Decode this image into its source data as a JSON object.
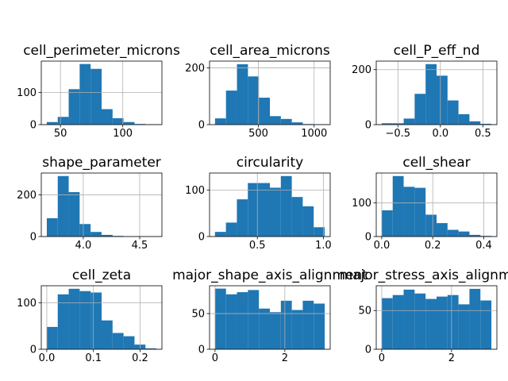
{
  "chart_data": [
    {
      "type": "histogram",
      "title": "cell_perimeter_microns",
      "bins": [
        39,
        47.8,
        56.6,
        65.4,
        74.2,
        83,
        91.8,
        100.6,
        109.4,
        118.2,
        127
      ],
      "values": [
        8,
        24,
        110,
        188,
        173,
        48,
        20,
        8,
        2,
        1
      ],
      "color": "#1f77b4",
      "xlim": [
        34.6,
        131.4
      ],
      "ylim": [
        0,
        197
      ],
      "xticks": [
        50,
        100
      ],
      "yticks": [
        0,
        100
      ],
      "grid": true
    },
    {
      "type": "histogram",
      "title": "cell_area_microns",
      "bins": [
        111,
        209.4,
        307.8,
        406.2,
        504.6,
        603,
        701.4,
        799.8,
        898.2,
        996.6,
        1095
      ],
      "values": [
        22,
        120,
        213,
        170,
        95,
        30,
        20,
        8,
        2,
        1
      ],
      "color": "#1f77b4",
      "xlim": [
        62,
        1144
      ],
      "ylim": [
        0,
        224
      ],
      "xticks": [
        500,
        1000
      ],
      "yticks": [
        0,
        200
      ],
      "grid": true
    },
    {
      "type": "histogram",
      "title": "cell_P_eff_nd",
      "bins": [
        -0.69,
        -0.561,
        -0.432,
        -0.303,
        -0.174,
        -0.045,
        0.084,
        0.213,
        0.342,
        0.471,
        0.6
      ],
      "values": [
        5,
        5,
        22,
        112,
        220,
        178,
        88,
        38,
        12,
        3
      ],
      "color": "#1f77b4",
      "xlim": [
        -0.755,
        0.665
      ],
      "ylim": [
        0,
        231
      ],
      "xticks": [
        {
          "value": -0.5,
          "label": "−0.5"
        },
        {
          "value": 0,
          "label": "0.0"
        },
        0.5
      ],
      "yticks": [
        0,
        200
      ],
      "grid": true
    },
    {
      "type": "histogram",
      "title": "shape_parameter",
      "bins": [
        3.677,
        3.774,
        3.871,
        3.968,
        4.065,
        4.162,
        4.26,
        4.357,
        4.454,
        4.551,
        4.648
      ],
      "values": [
        88,
        290,
        213,
        60,
        22,
        8,
        3,
        1,
        0,
        1
      ],
      "color": "#1f77b4",
      "xlim": [
        3.628,
        4.697
      ],
      "ylim": [
        0,
        304.5
      ],
      "xticks": [
        {
          "value": 4,
          "label": "4.0"
        },
        4.5
      ],
      "yticks": [
        0,
        200
      ],
      "grid": true
    },
    {
      "type": "histogram",
      "title": "circularity",
      "bins": [
        0.179,
        0.262,
        0.345,
        0.428,
        0.511,
        0.595,
        0.678,
        0.761,
        0.844,
        0.927,
        1.01
      ],
      "values": [
        10,
        30,
        80,
        115,
        115,
        105,
        130,
        85,
        65,
        20
      ],
      "color": "#1f77b4",
      "xlim": [
        0.138,
        1.052
      ],
      "ylim": [
        0,
        136.5
      ],
      "xticks": [
        0.5,
        {
          "value": 1,
          "label": "1.0"
        }
      ],
      "yticks": [
        0,
        100
      ],
      "grid": true
    },
    {
      "type": "histogram",
      "title": "cell_shear",
      "bins": [
        0,
        0.043,
        0.086,
        0.129,
        0.172,
        0.215,
        0.258,
        0.301,
        0.344,
        0.387,
        0.43
      ],
      "values": [
        78,
        180,
        148,
        145,
        65,
        40,
        20,
        15,
        5,
        2
      ],
      "color": "#1f77b4",
      "xlim": [
        -0.0215,
        0.4515
      ],
      "ylim": [
        0,
        189
      ],
      "xticks": [
        {
          "value": 0,
          "label": "0.0"
        },
        0.2,
        0.4
      ],
      "yticks": [
        0,
        100
      ],
      "grid": true
    },
    {
      "type": "histogram",
      "title": "cell_zeta",
      "bins": [
        0,
        0.0235,
        0.047,
        0.0705,
        0.094,
        0.1175,
        0.141,
        0.1645,
        0.188,
        0.2115,
        0.235
      ],
      "values": [
        48,
        118,
        130,
        125,
        122,
        62,
        35,
        28,
        10,
        2
      ],
      "color": "#1f77b4",
      "xlim": [
        -0.0118,
        0.2468
      ],
      "ylim": [
        0,
        136.5
      ],
      "xticks": [
        {
          "value": 0,
          "label": "0.0"
        },
        0.1,
        0.2
      ],
      "yticks": [
        0,
        100
      ],
      "grid": true
    },
    {
      "type": "histogram",
      "title": "major_shape_axis_alignment",
      "bins": [
        0,
        0.314,
        0.628,
        0.942,
        1.257,
        1.571,
        1.885,
        2.199,
        2.513,
        2.827,
        3.142
      ],
      "values": [
        85,
        77,
        80,
        83,
        57,
        52,
        68,
        55,
        68,
        64
      ],
      "color": "#1f77b4",
      "xlim": [
        -0.157,
        3.299
      ],
      "ylim": [
        0,
        89
      ],
      "xticks": [
        0,
        2
      ],
      "yticks": [
        0,
        50
      ],
      "grid": true
    },
    {
      "type": "histogram",
      "title": "major_stress_axis_alignment",
      "bins": [
        0,
        0.314,
        0.628,
        0.942,
        1.257,
        1.571,
        1.885,
        2.199,
        2.513,
        2.827,
        3.142
      ],
      "values": [
        66,
        70,
        77,
        72,
        65,
        68,
        70,
        58,
        78,
        63
      ],
      "color": "#1f77b4",
      "xlim": [
        -0.157,
        3.299
      ],
      "ylim": [
        0,
        82
      ],
      "xticks": [
        0,
        2
      ],
      "yticks": [
        0,
        50
      ],
      "grid": true
    }
  ]
}
